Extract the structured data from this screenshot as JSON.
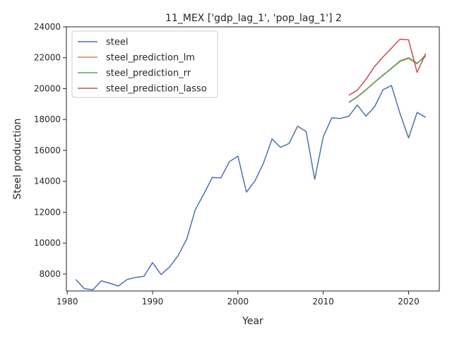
{
  "chart_data": {
    "type": "line",
    "title": "11_MEX ['gdp_lag_1', 'pop_lag_1'] 2",
    "xlabel": "Year",
    "ylabel": "Steel production",
    "xlim": [
      1979.9,
      2023.6
    ],
    "ylim": [
      6900,
      24000
    ],
    "xticks": [
      1980,
      1990,
      2000,
      2010,
      2020
    ],
    "yticks": [
      8000,
      10000,
      12000,
      14000,
      16000,
      18000,
      20000,
      22000,
      24000
    ],
    "grid": false,
    "legend": "top-left",
    "series": [
      {
        "name": "steel",
        "color": "#4c72b0",
        "points": [
          [
            1981,
            7650
          ],
          [
            1982,
            7050
          ],
          [
            1983,
            6980
          ],
          [
            1984,
            7560
          ],
          [
            1985,
            7400
          ],
          [
            1986,
            7220
          ],
          [
            1987,
            7640
          ],
          [
            1988,
            7780
          ],
          [
            1989,
            7850
          ],
          [
            1990,
            8740
          ],
          [
            1991,
            7960
          ],
          [
            1992,
            8460
          ],
          [
            1993,
            9200
          ],
          [
            1994,
            10260
          ],
          [
            1995,
            12150
          ],
          [
            1996,
            13170
          ],
          [
            1997,
            14250
          ],
          [
            1998,
            14220
          ],
          [
            1999,
            15270
          ],
          [
            2000,
            15630
          ],
          [
            2001,
            13300
          ],
          [
            2002,
            14030
          ],
          [
            2003,
            15180
          ],
          [
            2004,
            16740
          ],
          [
            2005,
            16200
          ],
          [
            2006,
            16450
          ],
          [
            2007,
            17570
          ],
          [
            2008,
            17220
          ],
          [
            2009,
            14130
          ],
          [
            2010,
            16880
          ],
          [
            2011,
            18110
          ],
          [
            2012,
            18070
          ],
          [
            2013,
            18210
          ],
          [
            2014,
            18940
          ],
          [
            2015,
            18220
          ],
          [
            2016,
            18810
          ],
          [
            2017,
            19920
          ],
          [
            2018,
            20200
          ],
          [
            2019,
            18380
          ],
          [
            2020,
            16810
          ],
          [
            2021,
            18460
          ],
          [
            2022,
            18140
          ]
        ]
      },
      {
        "name": "steel_prediction_lm",
        "color": "#dd8452",
        "points": [
          [
            2013,
            19100
          ],
          [
            2014,
            19450
          ],
          [
            2015,
            19900
          ],
          [
            2016,
            20400
          ],
          [
            2017,
            20850
          ],
          [
            2018,
            21300
          ],
          [
            2019,
            21750
          ],
          [
            2020,
            21950
          ],
          [
            2021,
            21600
          ],
          [
            2022,
            22200
          ]
        ]
      },
      {
        "name": "steel_prediction_rr",
        "color": "#55a868",
        "points": [
          [
            2013,
            19120
          ],
          [
            2014,
            19480
          ],
          [
            2015,
            19930
          ],
          [
            2016,
            20420
          ],
          [
            2017,
            20880
          ],
          [
            2018,
            21330
          ],
          [
            2019,
            21800
          ],
          [
            2020,
            22000
          ],
          [
            2021,
            21650
          ],
          [
            2022,
            22080
          ]
        ]
      },
      {
        "name": "steel_prediction_lasso",
        "color": "#c44e52",
        "points": [
          [
            2013,
            19570
          ],
          [
            2014,
            19900
          ],
          [
            2015,
            20600
          ],
          [
            2016,
            21420
          ],
          [
            2017,
            22050
          ],
          [
            2018,
            22620
          ],
          [
            2019,
            23200
          ],
          [
            2020,
            23160
          ],
          [
            2021,
            21050
          ],
          [
            2022,
            22270
          ]
        ]
      }
    ]
  }
}
